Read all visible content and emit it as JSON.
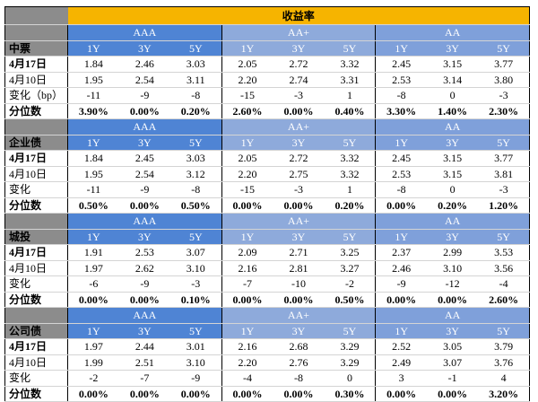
{
  "title": "收益率",
  "groups": [
    "AAA",
    "AA+",
    "AA"
  ],
  "terms": [
    "1Y",
    "3Y",
    "5Y"
  ],
  "sections": [
    {
      "name": "中票",
      "rows": [
        {
          "label": "4月17日",
          "values": [
            "1.84",
            "2.46",
            "3.03",
            "2.05",
            "2.72",
            "3.32",
            "2.45",
            "3.15",
            "3.77"
          ]
        },
        {
          "label": "4月10日",
          "values": [
            "1.95",
            "2.54",
            "3.11",
            "2.20",
            "2.74",
            "3.31",
            "2.53",
            "3.14",
            "3.80"
          ]
        },
        {
          "label": "变化（bp）",
          "values": [
            "-11",
            "-9",
            "-8",
            "-15",
            "-3",
            "1",
            "-8",
            "0",
            "-3"
          ]
        },
        {
          "label": "分位数",
          "values": [
            "3.90%",
            "0.00%",
            "0.20%",
            "2.60%",
            "0.00%",
            "0.40%",
            "3.30%",
            "1.40%",
            "2.30%"
          ]
        }
      ]
    },
    {
      "name": "企业债",
      "rows": [
        {
          "label": "4月17日",
          "values": [
            "1.84",
            "2.45",
            "3.03",
            "2.05",
            "2.72",
            "3.32",
            "2.45",
            "3.15",
            "3.77"
          ]
        },
        {
          "label": "4月10日",
          "values": [
            "1.95",
            "2.54",
            "3.12",
            "2.20",
            "2.75",
            "3.32",
            "2.53",
            "3.15",
            "3.81"
          ]
        },
        {
          "label": "变化",
          "values": [
            "-11",
            "-9",
            "-8",
            "-15",
            "-3",
            "1",
            "-8",
            "0",
            "-3"
          ]
        },
        {
          "label": "分位数",
          "values": [
            "0.50%",
            "0.00%",
            "0.50%",
            "0.00%",
            "0.00%",
            "0.20%",
            "0.00%",
            "0.20%",
            "1.20%"
          ]
        }
      ]
    },
    {
      "name": "城投",
      "rows": [
        {
          "label": "4月17日",
          "values": [
            "1.91",
            "2.53",
            "3.07",
            "2.09",
            "2.71",
            "3.25",
            "2.37",
            "2.99",
            "3.53"
          ]
        },
        {
          "label": "4月10日",
          "values": [
            "1.97",
            "2.62",
            "3.10",
            "2.16",
            "2.81",
            "3.27",
            "2.46",
            "3.10",
            "3.56"
          ]
        },
        {
          "label": "变化",
          "values": [
            "-6",
            "-9",
            "-3",
            "-7",
            "-10",
            "-2",
            "-9",
            "-12",
            "-4"
          ]
        },
        {
          "label": "分位数",
          "values": [
            "0.00%",
            "0.00%",
            "0.10%",
            "0.00%",
            "0.00%",
            "0.50%",
            "0.00%",
            "0.00%",
            "2.60%"
          ]
        }
      ]
    },
    {
      "name": "公司债",
      "rows": [
        {
          "label": "4月17日",
          "values": [
            "1.97",
            "2.44",
            "3.01",
            "2.16",
            "2.68",
            "3.29",
            "2.52",
            "3.05",
            "3.79"
          ]
        },
        {
          "label": "4月10日",
          "values": [
            "1.99",
            "2.51",
            "3.10",
            "2.20",
            "2.76",
            "3.29",
            "2.49",
            "3.07",
            "3.76"
          ]
        },
        {
          "label": "变化",
          "values": [
            "-2",
            "-7",
            "-9",
            "-4",
            "-8",
            "0",
            "3",
            "-1",
            "4"
          ]
        },
        {
          "label": "分位数",
          "values": [
            "0.00%",
            "0.00%",
            "0.00%",
            "0.00%",
            "0.00%",
            "0.30%",
            "0.00%",
            "0.00%",
            "3.20%"
          ]
        }
      ]
    }
  ],
  "colors": {
    "title_bg": "#f6b400",
    "aaa_bg": "#4f84d4",
    "aa_plus_bg": "#8eaadb",
    "aa_bg": "#7fa0da",
    "gray_cell": "#8c8c8c"
  }
}
